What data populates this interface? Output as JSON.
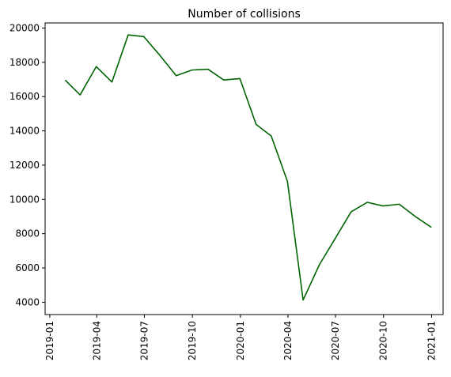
{
  "chart_data": {
    "type": "line",
    "title": "Number of collisions",
    "xlabel": "",
    "ylabel": "",
    "x_tick_labels": [
      "2019-01",
      "2019-04",
      "2019-07",
      "2019-10",
      "2020-01",
      "2020-04",
      "2020-07",
      "2020-10",
      "2021-01"
    ],
    "y_tick_labels": [
      "4000",
      "6000",
      "8000",
      "10000",
      "12000",
      "14000",
      "16000",
      "18000",
      "20000"
    ],
    "x_tick_values": [
      "2019-01-01",
      "2019-04-01",
      "2019-07-01",
      "2019-10-01",
      "2020-01-01",
      "2020-04-01",
      "2020-07-01",
      "2020-10-01",
      "2021-01-01"
    ],
    "y_tick_values": [
      4000,
      6000,
      8000,
      10000,
      12000,
      14000,
      16000,
      18000,
      20000
    ],
    "xlim": [
      "2018-12-23",
      "2021-01-23"
    ],
    "ylim": [
      3280,
      20300
    ],
    "grid": false,
    "series": [
      {
        "color": "#006400",
        "x": [
          "2019-01-31",
          "2019-02-28",
          "2019-03-31",
          "2019-04-30",
          "2019-05-31",
          "2019-06-30",
          "2019-07-31",
          "2019-08-31",
          "2019-09-30",
          "2019-10-31",
          "2019-11-30",
          "2019-12-31",
          "2020-01-31",
          "2020-02-29",
          "2020-03-31",
          "2020-04-30",
          "2020-05-31",
          "2020-06-30",
          "2020-07-31",
          "2020-08-31",
          "2020-09-30",
          "2020-10-31",
          "2020-11-30",
          "2020-12-31"
        ],
        "values": [
          16950,
          16100,
          17750,
          16850,
          19600,
          19500,
          18400,
          17220,
          17550,
          17600,
          16970,
          17050,
          14380,
          13700,
          11050,
          4130,
          6180,
          7700,
          9280,
          9830,
          9620,
          9720,
          9020,
          8380
        ]
      }
    ]
  }
}
